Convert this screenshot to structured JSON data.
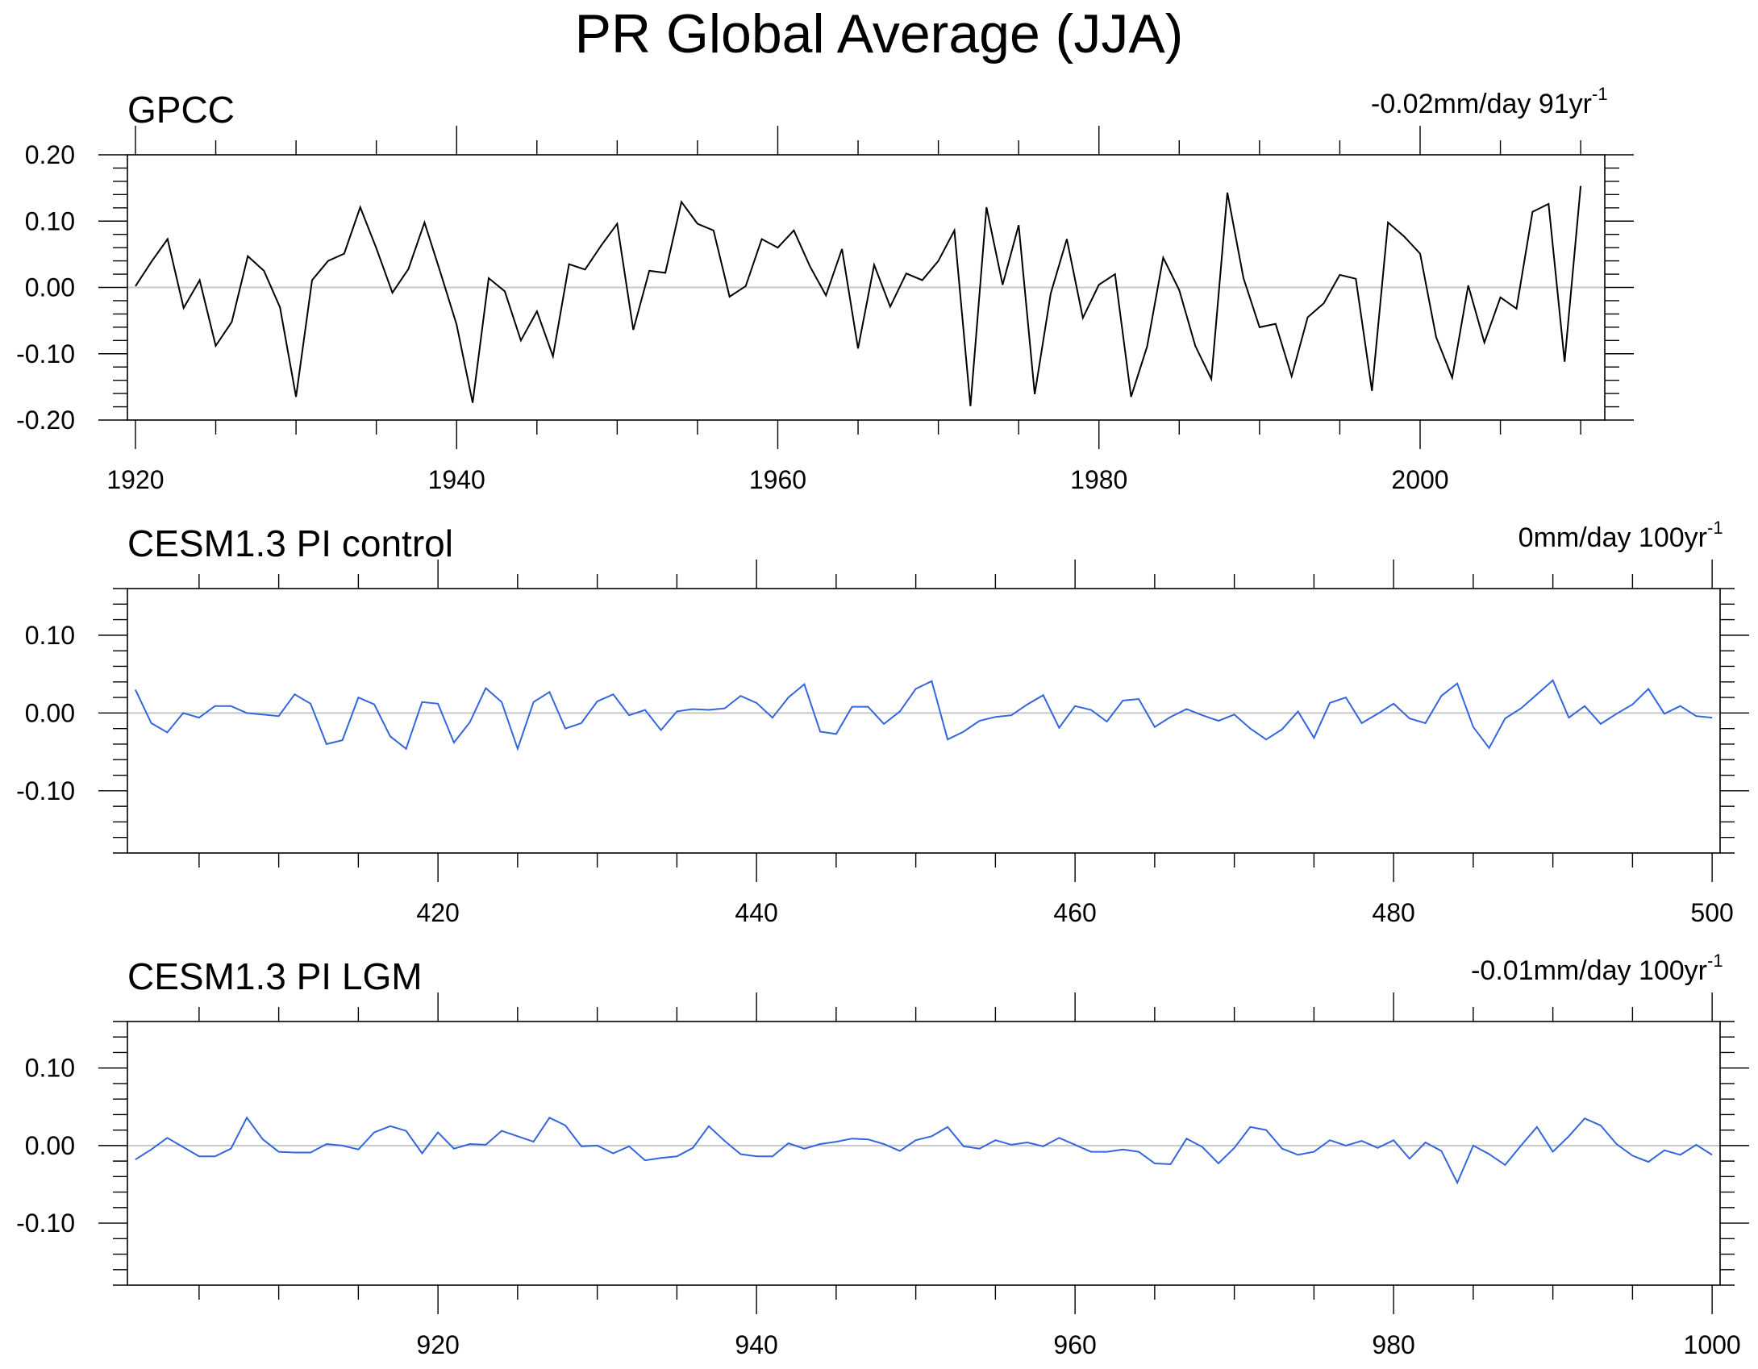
{
  "title": "PR Global Average (JJA)",
  "colors": {
    "black_series": "#000000",
    "blue_series": "#3366dd",
    "zero_line": "#c8c8c8",
    "axis": "#000000"
  },
  "chart_data": [
    {
      "type": "line",
      "title": "GPCC",
      "trend_value": "-0.02mm/day 91yr",
      "trend_exp": "-1",
      "color": "#000000",
      "xlim": [
        1919.5,
        2011.5
      ],
      "ylim": [
        -0.2,
        0.2
      ],
      "xticks": [
        1920,
        1940,
        1960,
        1980,
        2000
      ],
      "xtick_labels": [
        "1920",
        "1940",
        "1960",
        "1980",
        "2000"
      ],
      "yticks": [
        -0.2,
        -0.1,
        0,
        0.1,
        0.2
      ],
      "ytick_labels": [
        "-0.20",
        "-0.10",
        "0.00",
        "0.10",
        "0.20"
      ],
      "x_start": 1920,
      "y": [
        0.002,
        0.039,
        0.073,
        -0.031,
        0.011,
        -0.088,
        -0.052,
        0.047,
        0.025,
        -0.03,
        -0.165,
        0.011,
        0.04,
        0.051,
        0.121,
        0.059,
        -0.008,
        0.028,
        0.098,
        0.022,
        -0.056,
        -0.174,
        0.014,
        -0.006,
        -0.08,
        -0.036,
        -0.104,
        0.035,
        0.027,
        0.063,
        0.096,
        -0.064,
        0.025,
        0.022,
        0.129,
        0.096,
        0.086,
        -0.014,
        0.002,
        0.073,
        0.06,
        0.086,
        0.032,
        -0.012,
        0.058,
        -0.092,
        0.034,
        -0.029,
        0.021,
        0.011,
        0.04,
        0.086,
        -0.179,
        0.121,
        0.004,
        0.094,
        -0.161,
        -0.009,
        0.073,
        -0.046,
        0.004,
        0.02,
        -0.165,
        -0.089,
        0.045,
        -0.004,
        -0.088,
        -0.138,
        0.143,
        0.014,
        -0.06,
        -0.055,
        -0.134,
        -0.045,
        -0.024,
        0.019,
        0.013,
        -0.156,
        0.098,
        0.077,
        0.051,
        -0.075,
        -0.136,
        0.003,
        -0.083,
        -0.015,
        -0.032,
        0.114,
        0.126,
        -0.112,
        0.153
      ]
    },
    {
      "type": "line",
      "title": "CESM1.3 PI control",
      "trend_value": "0mm/day 100yr",
      "trend_exp": "-1",
      "color": "#3366dd",
      "xlim": [
        400.5,
        500.5
      ],
      "ylim": [
        -0.18,
        0.16
      ],
      "xticks": [
        420,
        440,
        460,
        480,
        500
      ],
      "xtick_labels": [
        "420",
        "440",
        "460",
        "480",
        "500"
      ],
      "yticks": [
        -0.1,
        0,
        0.1
      ],
      "ytick_labels": [
        "-0.10",
        "0.00",
        "0.10"
      ],
      "x_start": 401,
      "y": [
        0.03,
        -0.013,
        -0.025,
        0.0,
        -0.006,
        0.009,
        0.009,
        0.0,
        -0.002,
        -0.004,
        0.024,
        0.012,
        -0.04,
        -0.035,
        0.02,
        0.011,
        -0.03,
        -0.046,
        0.014,
        0.012,
        -0.038,
        -0.012,
        0.032,
        0.014,
        -0.046,
        0.014,
        0.027,
        -0.02,
        -0.013,
        0.015,
        0.024,
        -0.003,
        0.004,
        -0.022,
        0.002,
        0.005,
        0.004,
        0.006,
        0.022,
        0.013,
        -0.006,
        0.02,
        0.037,
        -0.024,
        -0.027,
        0.008,
        0.008,
        -0.014,
        0.002,
        0.031,
        0.041,
        -0.034,
        -0.024,
        -0.01,
        -0.005,
        -0.003,
        0.011,
        0.023,
        -0.019,
        0.009,
        0.004,
        -0.011,
        0.016,
        0.018,
        -0.018,
        -0.005,
        0.005,
        -0.003,
        -0.01,
        -0.002,
        -0.02,
        -0.034,
        -0.021,
        0.002,
        -0.032,
        0.013,
        0.02,
        -0.013,
        -0.001,
        0.012,
        -0.007,
        -0.013,
        0.022,
        0.038,
        -0.018,
        -0.045,
        -0.007,
        0.006,
        0.024,
        0.042,
        -0.006,
        0.009,
        -0.014,
        -0.001,
        0.011,
        0.031,
        -0.001,
        0.009,
        -0.004,
        -0.006
      ]
    },
    {
      "type": "line",
      "title": "CESM1.3 PI LGM",
      "trend_value": "-0.01mm/day 100yr",
      "trend_exp": "-1",
      "color": "#3366dd",
      "xlim": [
        900.5,
        1000.5
      ],
      "ylim": [
        -0.18,
        0.16
      ],
      "xticks": [
        920,
        940,
        960,
        980,
        1000
      ],
      "xtick_labels": [
        "920",
        "940",
        "960",
        "980",
        "1000"
      ],
      "yticks": [
        -0.1,
        0,
        0.1
      ],
      "ytick_labels": [
        "-0.10",
        "0.00",
        "0.10"
      ],
      "x_start": 901,
      "y": [
        -0.018,
        -0.005,
        0.01,
        -0.002,
        -0.014,
        -0.014,
        -0.004,
        0.036,
        0.008,
        -0.008,
        -0.009,
        -0.009,
        0.002,
        0.0,
        -0.005,
        0.017,
        0.025,
        0.019,
        -0.01,
        0.017,
        -0.004,
        0.002,
        0.001,
        0.019,
        0.012,
        0.005,
        0.036,
        0.026,
        -0.001,
        0.0,
        -0.01,
        -0.001,
        -0.019,
        -0.016,
        -0.014,
        -0.003,
        0.025,
        0.006,
        -0.011,
        -0.014,
        -0.014,
        0.003,
        -0.004,
        0.002,
        0.005,
        0.009,
        0.008,
        0.002,
        -0.007,
        0.007,
        0.012,
        0.024,
        -0.001,
        -0.004,
        0.007,
        0.001,
        0.004,
        -0.001,
        0.01,
        0.001,
        -0.008,
        -0.008,
        -0.005,
        -0.008,
        -0.023,
        -0.024,
        0.009,
        -0.002,
        -0.023,
        -0.003,
        0.024,
        0.02,
        -0.004,
        -0.012,
        -0.008,
        0.007,
        0.0,
        0.006,
        -0.003,
        0.007,
        -0.017,
        0.004,
        -0.007,
        -0.048,
        0.0,
        -0.011,
        -0.025,
        0.0,
        0.024,
        -0.008,
        0.012,
        0.035,
        0.026,
        0.002,
        -0.013,
        -0.021,
        -0.006,
        -0.012,
        0.001,
        -0.012
      ]
    }
  ]
}
